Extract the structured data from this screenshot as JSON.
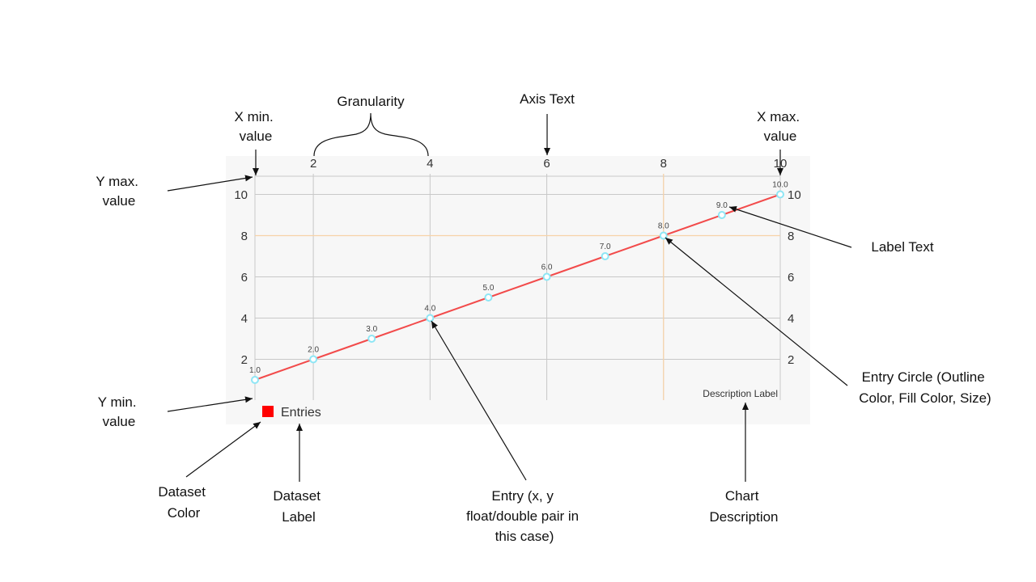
{
  "chart_data": {
    "type": "line",
    "x": [
      1,
      2,
      3,
      4,
      5,
      6,
      7,
      8,
      9,
      10
    ],
    "series": [
      {
        "name": "Entries",
        "values": [
          1.0,
          2.0,
          3.0,
          4.0,
          5.0,
          6.0,
          7.0,
          8.0,
          9.0,
          10.0
        ],
        "value_labels": [
          "1.0",
          "2.0",
          "3.0",
          "4.0",
          "5.0",
          "6.0",
          "7.0",
          "8.0",
          "9.0",
          "10.0"
        ],
        "line_color": "#f24b4b",
        "circle_color": "#8ee6f5"
      }
    ],
    "xlim": [
      1,
      10
    ],
    "ylim": [
      0,
      10
    ],
    "x_ticks": [
      "2",
      "4",
      "6",
      "8",
      "10"
    ],
    "y_ticks": [
      "2",
      "4",
      "6",
      "8",
      "10"
    ],
    "x_axis_position": "top",
    "y_axis_position": "both",
    "limit_lines": {
      "x": 8,
      "y": 8,
      "color": "#f7d3a8"
    },
    "grid": true,
    "legend": {
      "label": "Entries",
      "color": "#ff0000",
      "position": "bottom-left"
    },
    "description": "Description Label",
    "background": "#f7f7f7"
  },
  "annotations": {
    "granularity": "Granularity",
    "axis_text": "Axis Text",
    "x_min": [
      "X min.",
      "value"
    ],
    "x_max": [
      "X max.",
      "value"
    ],
    "y_max": [
      "Y max.",
      "value"
    ],
    "y_min": [
      "Y min.",
      "value"
    ],
    "label_text": "Label Text",
    "entry_circle": [
      "Entry Circle (Outline",
      "Color, Fill Color, Size)"
    ],
    "dataset_color": [
      "Dataset",
      "Color"
    ],
    "dataset_label": [
      "Dataset",
      "Label"
    ],
    "entry": [
      "Entry (x, y",
      "float/double pair in",
      "this case)"
    ],
    "chart_description": [
      "Chart",
      "Description"
    ]
  }
}
